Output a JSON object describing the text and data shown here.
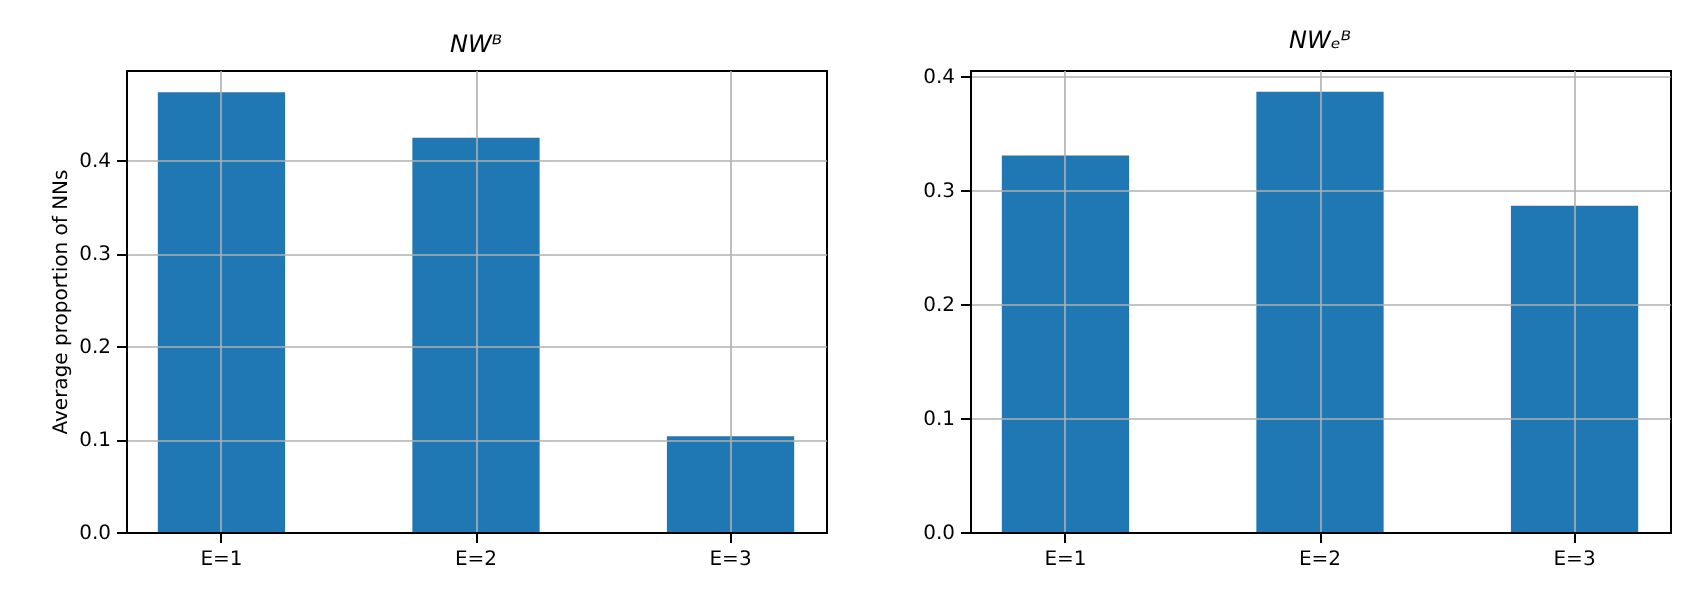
{
  "chart_data": [
    {
      "type": "bar",
      "title": "NWᴮ",
      "ylabel": "Average proportion of NNs",
      "categories": [
        "E=1",
        "E=2",
        "E=3"
      ],
      "values": [
        0.473,
        0.424,
        0.103
      ],
      "color": "#1f77b4",
      "ylim": [
        0,
        0.497
      ],
      "yticks": [
        {
          "value": 0,
          "label": "0.0"
        },
        0.1,
        0.2,
        0.3,
        0.4
      ],
      "grid": true
    },
    {
      "type": "bar",
      "title": "NWₑᴮ",
      "categories": [
        "E=1",
        "E=2",
        "E=3"
      ],
      "values": [
        0.33,
        0.386,
        0.286
      ],
      "color": "#1f77b4",
      "ylim": [
        0,
        0.405
      ],
      "yticks": [
        {
          "value": 0,
          "label": "0.0"
        },
        0.1,
        0.2,
        0.3,
        0.4
      ],
      "grid": true
    }
  ]
}
